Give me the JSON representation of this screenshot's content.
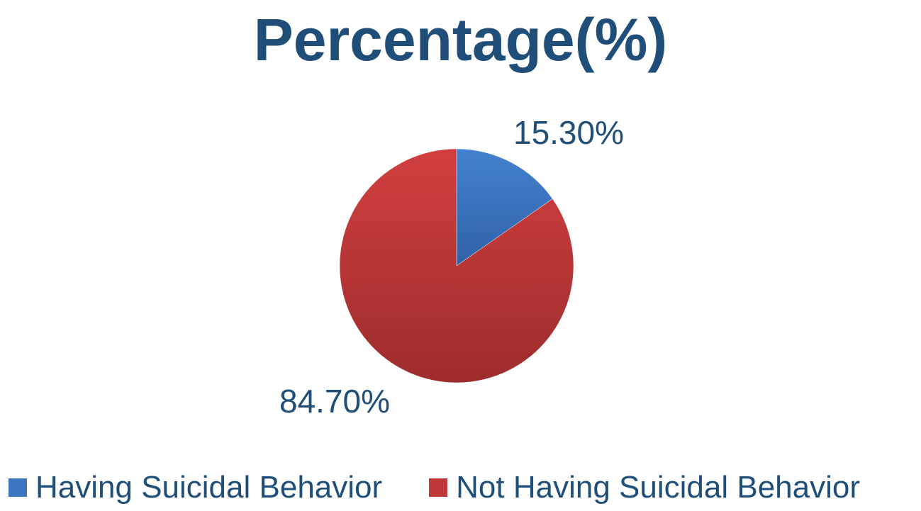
{
  "chart_data": {
    "type": "pie",
    "title": "Percentage(%)",
    "categories": [
      "Having Suicidal Behavior",
      "Not Having Suicidal Behavior"
    ],
    "values": [
      15.3,
      84.7
    ],
    "data_labels": [
      "15.30%",
      "84.70%"
    ],
    "colors": [
      "#3c75bf",
      "#c0393a"
    ],
    "legend_position": "bottom",
    "start_angle": "12 o'clock",
    "direction": "clockwise"
  },
  "colors": {
    "text": "#1f4e79",
    "background": "#ffffff"
  }
}
